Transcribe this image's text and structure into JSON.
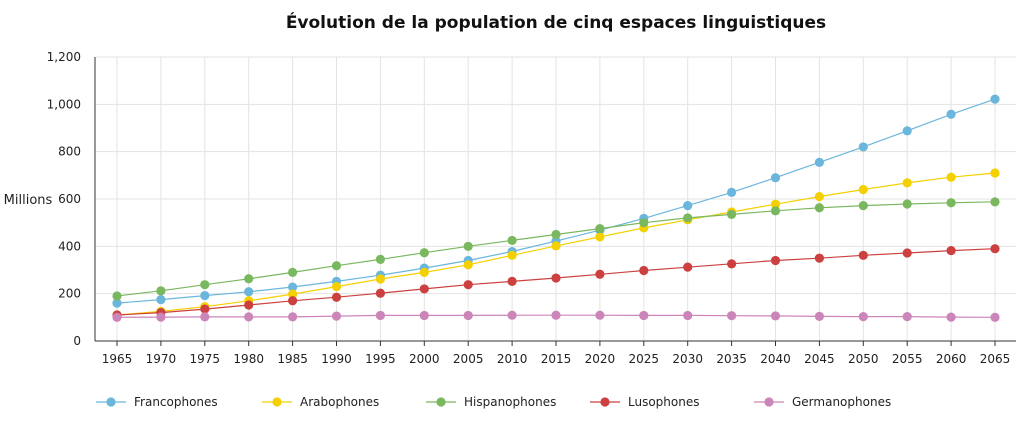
{
  "chart_data": {
    "type": "line",
    "title": "Évolution de la population de cinq espaces linguistiques",
    "ylabel": "Millions",
    "xlabel": "",
    "ylim": [
      0,
      1200
    ],
    "yticks": [
      "0",
      "200",
      "400",
      "600",
      "800",
      "1,000",
      "1,200"
    ],
    "ytick_values": [
      0,
      200,
      400,
      600,
      800,
      1000,
      1200
    ],
    "grid": true,
    "legend_position": "bottom",
    "x": [
      "1965",
      "1970",
      "1975",
      "1980",
      "1985",
      "1990",
      "1995",
      "2000",
      "2005",
      "2010",
      "2015",
      "2020",
      "2025",
      "2030",
      "2035",
      "2040",
      "2045",
      "2050",
      "2055",
      "2060",
      "2065"
    ],
    "series": [
      {
        "name": "Francophones",
        "color": "#6bb6dc",
        "values": [
          160,
          175,
          192,
          208,
          228,
          252,
          278,
          308,
          340,
          378,
          422,
          468,
          518,
          572,
          628,
          690,
          755,
          820,
          888,
          958,
          1022
        ]
      },
      {
        "name": "Arabophones",
        "color": "#f5d000",
        "values": [
          110,
          125,
          145,
          170,
          198,
          230,
          262,
          290,
          322,
          362,
          402,
          440,
          478,
          512,
          545,
          578,
          610,
          640,
          668,
          692,
          710
        ]
      },
      {
        "name": "Hispanophones",
        "color": "#79b85f",
        "values": [
          190,
          212,
          238,
          263,
          290,
          318,
          345,
          373,
          400,
          425,
          450,
          475,
          500,
          520,
          535,
          550,
          563,
          572,
          579,
          584,
          588
        ]
      },
      {
        "name": "Lusophones",
        "color": "#cc4040",
        "values": [
          110,
          120,
          135,
          152,
          170,
          185,
          202,
          220,
          238,
          252,
          266,
          282,
          298,
          312,
          326,
          340,
          350,
          362,
          372,
          382,
          390
        ]
      },
      {
        "name": "Germanophones",
        "color": "#cc85b8",
        "values": [
          100,
          101,
          102,
          102,
          102,
          105,
          108,
          108,
          108,
          109,
          109,
          109,
          108,
          108,
          107,
          106,
          104,
          103,
          103,
          101,
          100
        ]
      }
    ]
  }
}
